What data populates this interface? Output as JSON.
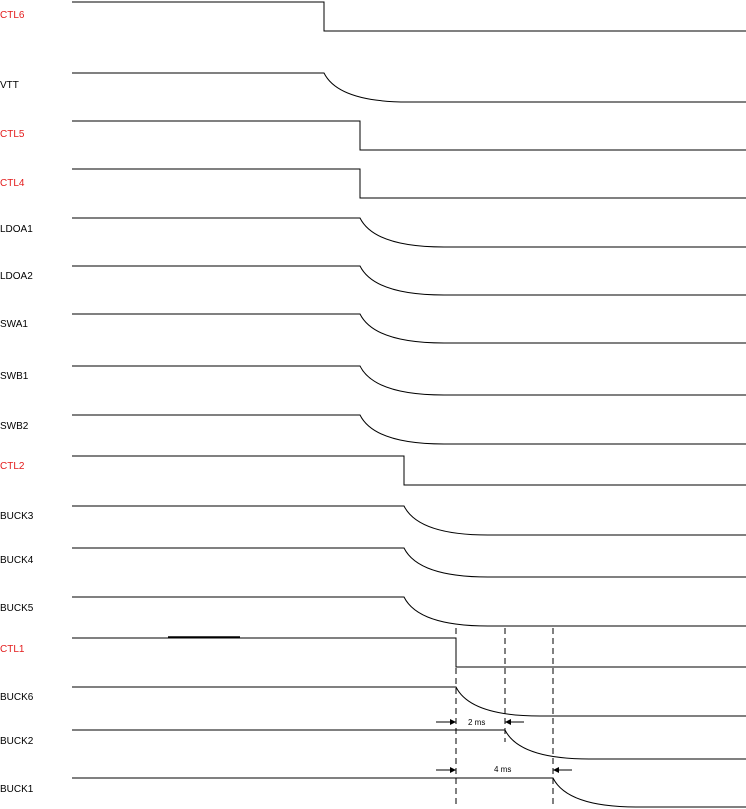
{
  "colors": {
    "control": "#e31b1b",
    "signal": "#000000",
    "line": "#000000"
  },
  "signals": [
    {
      "label": "CTL6",
      "kind": "control"
    },
    {
      "label": "VTT",
      "kind": "rail"
    },
    {
      "label": "CTL5",
      "kind": "control"
    },
    {
      "label": "CTL4",
      "kind": "control"
    },
    {
      "label": "LDOA1",
      "kind": "rail"
    },
    {
      "label": "LDOA2",
      "kind": "rail"
    },
    {
      "label": "SWA1",
      "kind": "rail"
    },
    {
      "label": "SWB1",
      "kind": "rail"
    },
    {
      "label": "SWB2",
      "kind": "rail"
    },
    {
      "label": "CTL2",
      "kind": "control"
    },
    {
      "label": "BUCK3",
      "kind": "rail"
    },
    {
      "label": "BUCK4",
      "kind": "rail"
    },
    {
      "label": "BUCK5",
      "kind": "rail"
    },
    {
      "label": "CTL1",
      "kind": "control"
    },
    {
      "label": "BUCK6",
      "kind": "rail"
    },
    {
      "label": "BUCK2",
      "kind": "rail"
    },
    {
      "label": "BUCK1",
      "kind": "rail"
    }
  ],
  "annotations": [
    {
      "text": "2 ms"
    },
    {
      "text": "4 ms"
    }
  ]
}
